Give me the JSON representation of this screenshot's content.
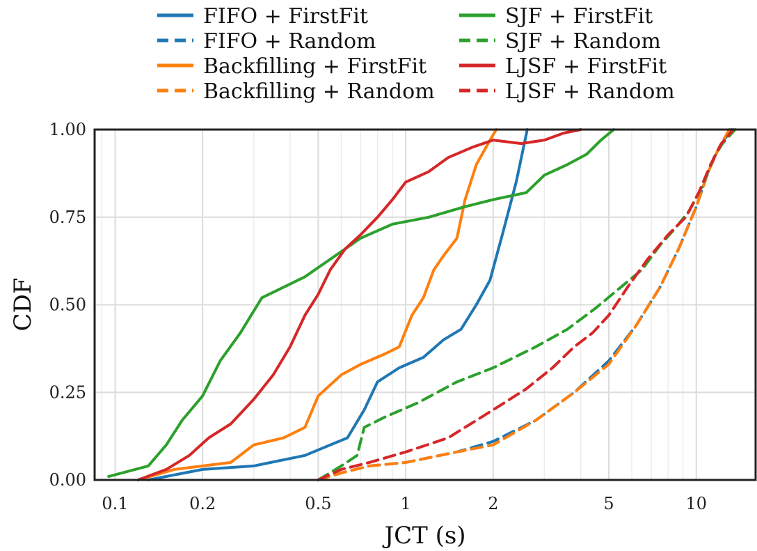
{
  "chart_data": {
    "type": "line",
    "xlabel": "JCT (s)",
    "ylabel": "CDF",
    "xscale": "log",
    "xlim": [
      0.085,
      16
    ],
    "ylim": [
      0,
      1
    ],
    "xticks": [
      0.1,
      0.2,
      0.5,
      1,
      2,
      5,
      10
    ],
    "xtick_labels": [
      "0.1",
      "0.2",
      "0.5",
      "1",
      "2",
      "5",
      "10"
    ],
    "yticks": [
      0,
      0.25,
      0.5,
      0.75,
      1
    ],
    "ytick_labels": [
      "0.00",
      "0.25",
      "0.50",
      "0.75",
      "1.00"
    ],
    "grid": true,
    "legend_position": "top, above plot, two columns",
    "series": [
      {
        "name": "FIFO + FirstFit",
        "color": "#1f77b4",
        "dash": "solid",
        "x": [
          0.13,
          0.2,
          0.3,
          0.45,
          0.55,
          0.63,
          0.72,
          0.8,
          0.95,
          1.15,
          1.35,
          1.55,
          1.75,
          1.95,
          2.15,
          2.4,
          2.62
        ],
        "y": [
          0.0,
          0.03,
          0.04,
          0.07,
          0.1,
          0.12,
          0.2,
          0.28,
          0.32,
          0.35,
          0.4,
          0.43,
          0.5,
          0.57,
          0.7,
          0.85,
          1.0
        ]
      },
      {
        "name": "FIFO + Random",
        "color": "#1f77b4",
        "dash": "dashed",
        "x": [
          0.5,
          0.6,
          0.75,
          1.0,
          1.5,
          2.0,
          2.8,
          3.8,
          5.0,
          6.2,
          7.5,
          8.7,
          10.0,
          11.0,
          12.0,
          13.2
        ],
        "y": [
          0.0,
          0.02,
          0.04,
          0.05,
          0.08,
          0.11,
          0.17,
          0.25,
          0.34,
          0.44,
          0.55,
          0.66,
          0.78,
          0.88,
          0.95,
          1.0
        ]
      },
      {
        "name": "Backfilling + FirstFit",
        "color": "#ff7f0e",
        "dash": "solid",
        "x": [
          0.12,
          0.16,
          0.25,
          0.3,
          0.38,
          0.45,
          0.5,
          0.6,
          0.7,
          0.85,
          0.95,
          1.05,
          1.15,
          1.25,
          1.35,
          1.5,
          1.6,
          1.75,
          1.95,
          2.05
        ],
        "y": [
          0.0,
          0.03,
          0.05,
          0.1,
          0.12,
          0.15,
          0.24,
          0.3,
          0.33,
          0.36,
          0.38,
          0.47,
          0.52,
          0.6,
          0.64,
          0.69,
          0.8,
          0.9,
          0.97,
          1.0
        ]
      },
      {
        "name": "Backfilling + Random",
        "color": "#ff7f0e",
        "dash": "dashed",
        "x": [
          0.5,
          0.6,
          0.75,
          1.0,
          1.5,
          2.0,
          2.8,
          3.8,
          5.0,
          6.2,
          7.5,
          8.7,
          10.0,
          11.0,
          12.0,
          13.0
        ],
        "y": [
          0.0,
          0.02,
          0.04,
          0.05,
          0.08,
          0.1,
          0.17,
          0.25,
          0.33,
          0.44,
          0.55,
          0.66,
          0.78,
          0.88,
          0.95,
          1.0
        ]
      },
      {
        "name": "SJF + FirstFit",
        "color": "#2ca02c",
        "dash": "solid",
        "x": [
          0.095,
          0.13,
          0.15,
          0.17,
          0.2,
          0.23,
          0.27,
          0.32,
          0.38,
          0.45,
          0.55,
          0.7,
          0.9,
          1.2,
          1.6,
          2.0,
          2.6,
          3.0,
          3.6,
          4.2,
          4.7,
          5.2
        ],
        "y": [
          0.01,
          0.04,
          0.1,
          0.17,
          0.24,
          0.34,
          0.42,
          0.52,
          0.55,
          0.58,
          0.63,
          0.69,
          0.73,
          0.75,
          0.78,
          0.8,
          0.82,
          0.87,
          0.9,
          0.93,
          0.97,
          1.0
        ]
      },
      {
        "name": "SJF + Random",
        "color": "#2ca02c",
        "dash": "dashed",
        "x": [
          0.5,
          0.6,
          0.68,
          0.72,
          0.85,
          1.1,
          1.5,
          2.0,
          2.8,
          3.6,
          4.5,
          5.5,
          6.5,
          7.5,
          8.5,
          9.5,
          10.5,
          11.5,
          12.3,
          13.6
        ],
        "y": [
          0.0,
          0.04,
          0.07,
          0.15,
          0.18,
          0.22,
          0.28,
          0.32,
          0.38,
          0.43,
          0.49,
          0.55,
          0.6,
          0.67,
          0.72,
          0.77,
          0.84,
          0.92,
          0.96,
          1.0
        ]
      },
      {
        "name": "LJSF + FirstFit",
        "color": "#d62728",
        "dash": "solid",
        "x": [
          0.12,
          0.15,
          0.18,
          0.21,
          0.25,
          0.3,
          0.35,
          0.4,
          0.45,
          0.5,
          0.55,
          0.62,
          0.7,
          0.8,
          0.9,
          1.0,
          1.2,
          1.4,
          1.7,
          2.0,
          2.5,
          3.0,
          3.5,
          4.0
        ],
        "y": [
          0.0,
          0.03,
          0.07,
          0.12,
          0.16,
          0.23,
          0.3,
          0.38,
          0.47,
          0.53,
          0.6,
          0.66,
          0.7,
          0.75,
          0.8,
          0.85,
          0.88,
          0.92,
          0.95,
          0.97,
          0.96,
          0.97,
          0.99,
          1.0
        ]
      },
      {
        "name": "LJSF + Random",
        "color": "#d62728",
        "dash": "dashed",
        "x": [
          0.5,
          0.6,
          0.75,
          1.0,
          1.4,
          2.0,
          2.6,
          3.2,
          3.8,
          4.4,
          5.0,
          5.8,
          6.8,
          8.0,
          9.2,
          10.2,
          11.2,
          12.2,
          13.4
        ],
        "y": [
          0.0,
          0.03,
          0.05,
          0.08,
          0.12,
          0.2,
          0.26,
          0.32,
          0.38,
          0.42,
          0.47,
          0.55,
          0.63,
          0.7,
          0.75,
          0.82,
          0.9,
          0.96,
          1.0
        ]
      }
    ]
  }
}
